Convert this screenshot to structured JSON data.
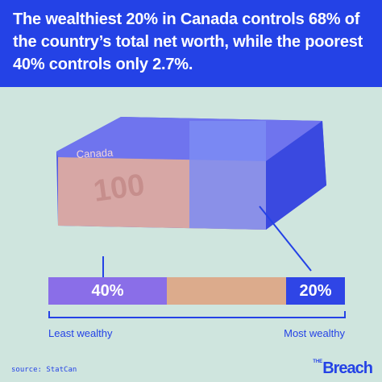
{
  "header": {
    "title": "The wealthiest 20% in Canada controls 68% of the country’s total net worth, while the poorest 40% controls only 2.7%."
  },
  "illustration": {
    "bill_brand": "Canada",
    "bill_value": "100"
  },
  "bar": {
    "segments": [
      {
        "label": "40%"
      },
      {
        "label": null
      },
      {
        "label": "20%"
      }
    ],
    "left_label": "Least wealthy",
    "right_label": "Most wealthy"
  },
  "footer": {
    "source": "source: StatCan",
    "logo_small": "THE",
    "logo": "Breach"
  }
}
